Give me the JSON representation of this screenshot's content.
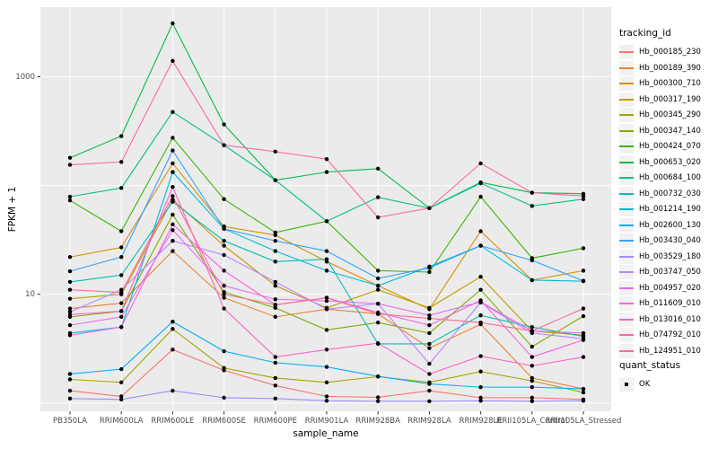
{
  "figure": {
    "y_axis": {
      "title": "FPKM + 1",
      "ticks": [
        {
          "label": "1000",
          "value": 1000
        },
        {
          "label": "10",
          "value": 10
        }
      ]
    },
    "x_axis": {
      "title": "sample_name"
    },
    "legend_tracking": {
      "title": "tracking_id"
    },
    "legend_quant": {
      "title": "quant_status",
      "items": [
        {
          "label": "OK"
        }
      ]
    },
    "panel_bg": "#EBEBEB",
    "gridline_color": "#FFFFFF",
    "tick_color": "#333333",
    "tick_label_color": "#4D4D4D",
    "point_color": "#000000"
  },
  "chart_data": {
    "type": "line",
    "title": "",
    "xlabel": "sample_name",
    "ylabel": "FPKM + 1",
    "y_scale": "log10",
    "ylim": [
      0.84,
      4365
    ],
    "y_breaks_labeled": [
      10,
      1000
    ],
    "y_gridlines": [
      1,
      10,
      100,
      1000
    ],
    "grid": true,
    "legend_position": "right",
    "categories": [
      "PB350LA",
      "RRIM600LA",
      "RRIM600LE",
      "RRIM600SE",
      "RRIM600PE",
      "RRIM901LA",
      "RRIM928BA",
      "RRIM928LA",
      "RRIM928LE",
      "RRII105LA_Control",
      "RRII105LA_Stressed"
    ],
    "series": [
      {
        "name": "Hb_000185_230",
        "color": "#F8766D",
        "values": [
          1.3,
          1.15,
          3.1,
          2.0,
          1.45,
          1.15,
          1.13,
          1.3,
          1.12,
          1.12,
          1.08
        ]
      },
      {
        "name": "Hb_000189_390",
        "color": "#EA8331",
        "values": [
          7.4,
          8.3,
          25,
          9.3,
          6.2,
          7.3,
          6.6,
          3.2,
          5.3,
          1.7,
          1.35
        ]
      },
      {
        "name": "Hb_000300_710",
        "color": "#D89000",
        "values": [
          22,
          27,
          160,
          42,
          35,
          20,
          12,
          7.3,
          38,
          13.5,
          16.5
        ]
      },
      {
        "name": "Hb_000317_190",
        "color": "#C09B00",
        "values": [
          9.1,
          10,
          74,
          28,
          12,
          7.5,
          11,
          7.5,
          14.5,
          4.6,
          4.2
        ]
      },
      {
        "name": "Hb_000345_290",
        "color": "#A3A500",
        "values": [
          1.65,
          1.55,
          4.8,
          2.1,
          1.7,
          1.55,
          1.75,
          1.55,
          1.95,
          1.6,
          1.25
        ]
      },
      {
        "name": "Hb_000347_140",
        "color": "#7CAE00",
        "values": [
          6.2,
          7.0,
          54,
          10.5,
          7.5,
          4.7,
          5.5,
          4.4,
          11,
          3.3,
          6.3
        ]
      },
      {
        "name": "Hb_000424_070",
        "color": "#39B600",
        "values": [
          73,
          38,
          275,
          75,
          37,
          47,
          16.5,
          16,
          79,
          21.5,
          26.5
        ]
      },
      {
        "name": "Hb_000653_020",
        "color": "#00BB4E",
        "values": [
          180,
          285,
          3100,
          365,
          112,
          133,
          143,
          62,
          107,
          86,
          84
        ]
      },
      {
        "name": "Hb_000684_100",
        "color": "#00C08B",
        "values": [
          79,
          95,
          475,
          235,
          112,
          47,
          78,
          62,
          105,
          65,
          75
        ]
      },
      {
        "name": "Hb_000732_030",
        "color": "#00C0B4",
        "values": [
          13,
          15,
          71,
          31,
          20,
          21,
          3.5,
          3.5,
          6.4,
          5.0,
          4.1
        ]
      },
      {
        "name": "Hb_001214_190",
        "color": "#00BCD8",
        "values": [
          4.4,
          5.0,
          133,
          40,
          25,
          16.5,
          12,
          18,
          28,
          13.5,
          13.2
        ]
      },
      {
        "name": "Hb_002600_130",
        "color": "#00B0F6",
        "values": [
          1.85,
          2.05,
          5.6,
          3.0,
          2.35,
          2.15,
          1.76,
          1.5,
          1.4,
          1.4,
          1.35
        ]
      },
      {
        "name": "Hb_003430_040",
        "color": "#35A2FF",
        "values": [
          16.3,
          22,
          210,
          40,
          31,
          25,
          14,
          17.5,
          28,
          20.5,
          13.3
        ]
      },
      {
        "name": "Hb_003529_180",
        "color": "#9590FF",
        "values": [
          1.1,
          1.08,
          1.3,
          1.12,
          1.1,
          1.05,
          1.04,
          1.04,
          1.05,
          1.04,
          1.05
        ]
      },
      {
        "name": "Hb_003747_050",
        "color": "#B983FF",
        "values": [
          6.9,
          11,
          31,
          23,
          13,
          7.3,
          8.2,
          2.3,
          8.4,
          4.4,
          3.9
        ]
      },
      {
        "name": "Hb_004957_020",
        "color": "#E76BF3",
        "values": [
          5.2,
          6.2,
          39,
          12,
          9.0,
          8.7,
          8.2,
          6.4,
          8.5,
          4.6,
          4.4
        ]
      },
      {
        "name": "Hb_011609_010",
        "color": "#F763E1",
        "values": [
          4.2,
          5.0,
          44,
          16.5,
          8.0,
          9.3,
          6.8,
          5.2,
          8.8,
          2.65,
          3.8
        ]
      },
      {
        "name": "Hb_013016_010",
        "color": "#FF61C7",
        "values": [
          6.5,
          7.0,
          97,
          7.4,
          2.65,
          3.1,
          3.55,
          1.85,
          2.7,
          2.2,
          2.65
        ]
      },
      {
        "name": "Hb_074792_010",
        "color": "#FF66A8",
        "values": [
          155,
          165,
          1400,
          235,
          205,
          175,
          51,
          62,
          160,
          86,
          80
        ]
      },
      {
        "name": "Hb_124951_010",
        "color": "#FF6C92",
        "values": [
          11,
          10.4,
          80,
          10,
          8.0,
          9.3,
          6.6,
          6.0,
          5.5,
          4.6,
          7.4
        ]
      }
    ],
    "quant_status": "OK"
  }
}
